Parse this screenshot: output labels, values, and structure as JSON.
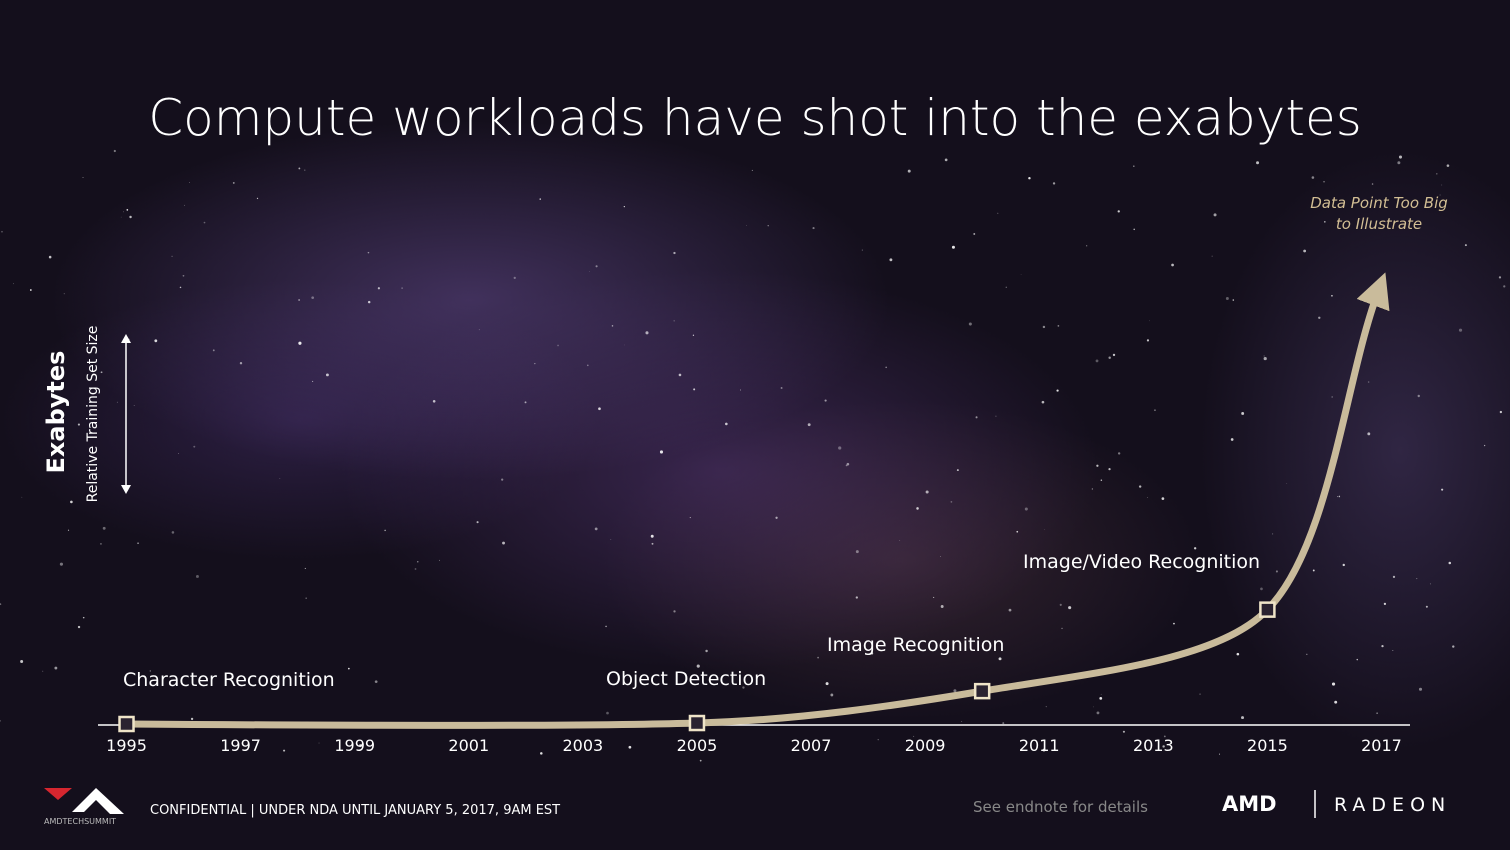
{
  "chart_data": {
    "type": "milestone-line",
    "title": "Compute workloads have shot into the exabytes",
    "y_label": "Exabytes",
    "y_sublabel": "Relative Training Set Size",
    "annotation": [
      "Data Point Too Big",
      "to Illustrate"
    ],
    "xlim": [
      1994.5,
      2017.5
    ],
    "xticks": [
      1995,
      1997,
      1999,
      2001,
      2003,
      2005,
      2007,
      2009,
      2011,
      2013,
      2015,
      2017
    ],
    "points": [
      {
        "x": 1995,
        "label": "Character Recognition"
      },
      {
        "x": 2005,
        "label": "Object Detection"
      },
      {
        "x": 2010,
        "label": "Image Recognition"
      },
      {
        "x": 2015,
        "label": "Image/Video Recognition"
      }
    ],
    "color": "#c9bb9b"
  },
  "footer": {
    "event": "AMDTECHSUMMIT",
    "notice": "CONFIDENTIAL | UNDER NDA UNTIL JANUARY 5, 2017, 9AM EST",
    "endnote": "See endnote for details",
    "brand": "AMD",
    "product": "RADEON"
  }
}
